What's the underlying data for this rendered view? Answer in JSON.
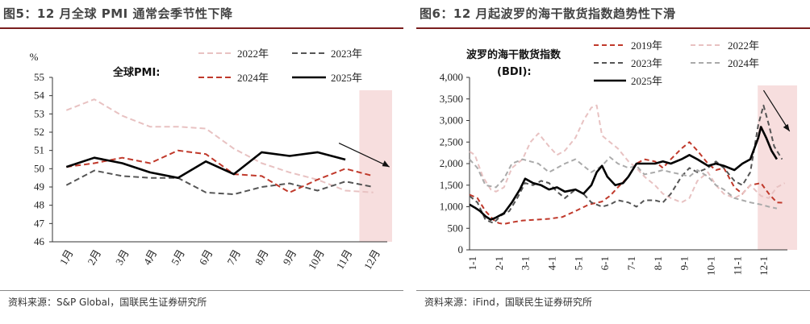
{
  "left": {
    "title": "图5：12 月全球 PMI 通常会季节性下降",
    "source": "资料来源：S&P Global，国联民生证券研究所",
    "chart_data": {
      "type": "line",
      "title": "全球PMI:",
      "unit": "%",
      "categories": [
        "1月",
        "2月",
        "3月",
        "4月",
        "5月",
        "6月",
        "7月",
        "8月",
        "9月",
        "10月",
        "11月",
        "12月"
      ],
      "ylim": [
        46,
        55
      ],
      "yticks": [
        "46",
        "47",
        "48",
        "49",
        "50",
        "51",
        "52",
        "53",
        "54",
        "55"
      ],
      "highlight_category": "12月",
      "series": [
        {
          "name": "2022年",
          "color": "#e8c2c2",
          "dash": "7,4",
          "width": 2,
          "values": [
            53.2,
            53.8,
            52.9,
            52.3,
            52.3,
            52.2,
            51.1,
            50.3,
            49.8,
            49.4,
            48.8,
            48.7
          ]
        },
        {
          "name": "2023年",
          "color": "#555555",
          "dash": "7,4",
          "width": 2,
          "values": [
            49.1,
            49.9,
            49.6,
            49.5,
            49.5,
            48.7,
            48.6,
            49.0,
            49.2,
            48.8,
            49.3,
            49.0
          ]
        },
        {
          "name": "2024年",
          "color": "#c0392b",
          "dash": "7,4",
          "width": 2,
          "values": [
            50.1,
            50.3,
            50.6,
            50.3,
            51.0,
            50.8,
            49.7,
            49.6,
            48.7,
            49.4,
            50.0,
            49.6
          ]
        },
        {
          "name": "2025年",
          "color": "#000000",
          "dash": "",
          "width": 2.6,
          "values": [
            50.1,
            50.6,
            50.3,
            49.8,
            49.5,
            50.4,
            49.7,
            50.9,
            50.7,
            50.9,
            50.5,
            null
          ]
        }
      ]
    }
  },
  "right": {
    "title": "图6：12 月起波罗的海干散货指数趋势性下滑",
    "source": "资料来源：iFind，国联民生证券研究所",
    "chart_data": {
      "type": "line",
      "title_line1": "波罗的海干散货指数",
      "title_line2": "(BDI):",
      "categories": [
        "1-1",
        "2-1",
        "3-1",
        "4-1",
        "5-1",
        "6-1",
        "7-1",
        "8-1",
        "9-1",
        "10-1",
        "11-1",
        "12-1"
      ],
      "ylim": [
        0,
        4000
      ],
      "yticks": [
        "0",
        "500",
        "1,000",
        "1,500",
        "2,000",
        "2,500",
        "3,000",
        "3,500",
        "4,000"
      ],
      "highlight_category": "12-1",
      "series": [
        {
          "name": "2019年",
          "color": "#c0392b",
          "dash": "6,4",
          "width": 2,
          "points": [
            [
              0,
              1280
            ],
            [
              0.3,
              1200
            ],
            [
              0.6,
              900
            ],
            [
              0.9,
              700
            ],
            [
              1.1,
              620
            ],
            [
              1.3,
              600
            ],
            [
              1.6,
              640
            ],
            [
              2.0,
              680
            ],
            [
              2.5,
              700
            ],
            [
              3.0,
              720
            ],
            [
              3.5,
              760
            ],
            [
              4.0,
              900
            ],
            [
              4.5,
              1050
            ],
            [
              5.0,
              1120
            ],
            [
              5.3,
              1250
            ],
            [
              5.6,
              1450
            ],
            [
              6.0,
              1700
            ],
            [
              6.3,
              2000
            ],
            [
              6.6,
              2100
            ],
            [
              7.0,
              2050
            ],
            [
              7.3,
              1900
            ],
            [
              7.6,
              2100
            ],
            [
              8.0,
              2350
            ],
            [
              8.3,
              2500
            ],
            [
              8.6,
              2300
            ],
            [
              9.0,
              2000
            ],
            [
              9.3,
              1850
            ],
            [
              9.6,
              1900
            ],
            [
              10.0,
              1450
            ],
            [
              10.3,
              1300
            ],
            [
              10.6,
              1500
            ],
            [
              11.0,
              1550
            ],
            [
              11.3,
              1300
            ],
            [
              11.6,
              1100
            ],
            [
              11.9,
              1090
            ]
          ]
        },
        {
          "name": "2022年",
          "color": "#e8c2c2",
          "dash": "6,4",
          "width": 2,
          "points": [
            [
              0,
              2280
            ],
            [
              0.2,
              2200
            ],
            [
              0.5,
              1700
            ],
            [
              0.8,
              1400
            ],
            [
              1.0,
              1350
            ],
            [
              1.3,
              1450
            ],
            [
              1.6,
              1900
            ],
            [
              2.0,
              2100
            ],
            [
              2.3,
              2500
            ],
            [
              2.6,
              2700
            ],
            [
              3.0,
              2400
            ],
            [
              3.3,
              2200
            ],
            [
              3.6,
              2300
            ],
            [
              4.0,
              2600
            ],
            [
              4.3,
              3000
            ],
            [
              4.6,
              3300
            ],
            [
              4.8,
              3350
            ],
            [
              5.0,
              2650
            ],
            [
              5.3,
              2500
            ],
            [
              5.6,
              2350
            ],
            [
              6.0,
              2050
            ],
            [
              6.3,
              1900
            ],
            [
              6.6,
              1700
            ],
            [
              7.0,
              1500
            ],
            [
              7.3,
              1300
            ],
            [
              7.6,
              1200
            ],
            [
              8.0,
              1100
            ],
            [
              8.3,
              1200
            ],
            [
              8.6,
              1600
            ],
            [
              9.0,
              1800
            ],
            [
              9.3,
              1500
            ],
            [
              9.6,
              1300
            ],
            [
              10.0,
              1200
            ],
            [
              10.3,
              1300
            ],
            [
              10.6,
              1500
            ],
            [
              11.0,
              1250
            ],
            [
              11.3,
              1200
            ],
            [
              11.6,
              1450
            ],
            [
              11.9,
              1550
            ]
          ]
        },
        {
          "name": "2023年",
          "color": "#555555",
          "dash": "6,4",
          "width": 2,
          "points": [
            [
              0,
              1250
            ],
            [
              0.3,
              1100
            ],
            [
              0.6,
              700
            ],
            [
              0.9,
              620
            ],
            [
              1.2,
              800
            ],
            [
              1.5,
              900
            ],
            [
              1.8,
              1200
            ],
            [
              2.1,
              1550
            ],
            [
              2.4,
              1500
            ],
            [
              2.7,
              1600
            ],
            [
              3.0,
              1550
            ],
            [
              3.3,
              1350
            ],
            [
              3.6,
              1200
            ],
            [
              4.0,
              1400
            ],
            [
              4.3,
              1300
            ],
            [
              4.6,
              1100
            ],
            [
              5.0,
              1000
            ],
            [
              5.3,
              1050
            ],
            [
              5.6,
              1150
            ],
            [
              6.0,
              1100
            ],
            [
              6.3,
              1000
            ],
            [
              6.6,
              1150
            ],
            [
              7.0,
              1150
            ],
            [
              7.3,
              1100
            ],
            [
              7.6,
              1300
            ],
            [
              8.0,
              1700
            ],
            [
              8.3,
              1900
            ],
            [
              8.6,
              1800
            ],
            [
              9.0,
              1900
            ],
            [
              9.3,
              2050
            ],
            [
              9.6,
              1900
            ],
            [
              10.0,
              1600
            ],
            [
              10.3,
              1500
            ],
            [
              10.6,
              1800
            ],
            [
              10.9,
              2900
            ],
            [
              11.1,
              3350
            ],
            [
              11.3,
              2900
            ],
            [
              11.5,
              2400
            ],
            [
              11.8,
              2100
            ]
          ]
        },
        {
          "name": "2024年",
          "color": "#aaaaaa",
          "dash": "6,4",
          "width": 2,
          "points": [
            [
              0,
              2100
            ],
            [
              0.3,
              1900
            ],
            [
              0.6,
              1500
            ],
            [
              1.0,
              1450
            ],
            [
              1.3,
              1650
            ],
            [
              1.6,
              2000
            ],
            [
              2.0,
              2100
            ],
            [
              2.3,
              2050
            ],
            [
              2.6,
              2000
            ],
            [
              3.0,
              1800
            ],
            [
              3.3,
              1900
            ],
            [
              3.6,
              2000
            ],
            [
              4.0,
              2100
            ],
            [
              4.3,
              1950
            ],
            [
              4.6,
              1800
            ],
            [
              5.0,
              1950
            ],
            [
              5.3,
              2150
            ],
            [
              5.6,
              2000
            ],
            [
              6.0,
              1900
            ],
            [
              6.3,
              1950
            ],
            [
              6.6,
              1750
            ],
            [
              7.0,
              1800
            ],
            [
              7.3,
              1850
            ],
            [
              7.6,
              1800
            ],
            [
              8.0,
              1750
            ],
            [
              8.3,
              1700
            ],
            [
              8.6,
              1850
            ],
            [
              9.0,
              1700
            ],
            [
              9.3,
              1500
            ],
            [
              9.6,
              1400
            ],
            [
              10.0,
              1200
            ],
            [
              10.3,
              1150
            ],
            [
              10.6,
              1100
            ],
            [
              11.0,
              1050
            ],
            [
              11.3,
              1000
            ],
            [
              11.6,
              960
            ]
          ]
        },
        {
          "name": "2025年",
          "color": "#000000",
          "dash": "",
          "width": 2.6,
          "points": [
            [
              0,
              1050
            ],
            [
              0.2,
              980
            ],
            [
              0.4,
              900
            ],
            [
              0.6,
              780
            ],
            [
              0.8,
              700
            ],
            [
              1.0,
              750
            ],
            [
              1.3,
              850
            ],
            [
              1.6,
              1100
            ],
            [
              1.9,
              1400
            ],
            [
              2.1,
              1650
            ],
            [
              2.4,
              1550
            ],
            [
              2.7,
              1500
            ],
            [
              3.0,
              1400
            ],
            [
              3.3,
              1450
            ],
            [
              3.6,
              1350
            ],
            [
              4.0,
              1400
            ],
            [
              4.3,
              1300
            ],
            [
              4.6,
              1500
            ],
            [
              4.8,
              1800
            ],
            [
              5.0,
              1950
            ],
            [
              5.2,
              1700
            ],
            [
              5.5,
              1500
            ],
            [
              5.8,
              1550
            ],
            [
              6.0,
              1700
            ],
            [
              6.3,
              2000
            ],
            [
              6.6,
              2000
            ],
            [
              7.0,
              2000
            ],
            [
              7.3,
              2050
            ],
            [
              7.6,
              2000
            ],
            [
              8.0,
              2100
            ],
            [
              8.3,
              2200
            ],
            [
              8.6,
              2100
            ],
            [
              9.0,
              1950
            ],
            [
              9.3,
              2000
            ],
            [
              9.6,
              1950
            ],
            [
              10.0,
              1850
            ],
            [
              10.3,
              2000
            ],
            [
              10.6,
              2100
            ],
            [
              10.9,
              2600
            ],
            [
              11.0,
              2850
            ],
            [
              11.2,
              2600
            ],
            [
              11.4,
              2300
            ],
            [
              11.6,
              2100
            ]
          ]
        }
      ]
    }
  }
}
